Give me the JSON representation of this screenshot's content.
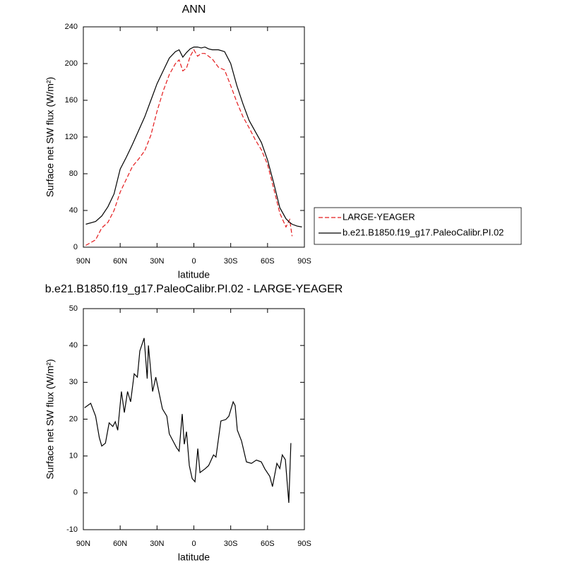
{
  "chart_data": [
    {
      "type": "line",
      "title": "ANN",
      "xlabel": "latitude",
      "ylabel": "Surface net SW flux (W/m²)",
      "x": [
        88,
        80,
        75,
        70,
        65,
        60,
        55,
        50,
        45,
        40,
        35,
        30,
        25,
        20,
        15,
        12,
        9,
        6,
        3,
        0,
        -3,
        -6,
        -9,
        -12,
        -15,
        -20,
        -25,
        -30,
        -35,
        -40,
        -45,
        -50,
        -55,
        -60,
        -65,
        -70,
        -75,
        -78,
        -80,
        -84,
        -88
      ],
      "series": [
        {
          "name": "LARGE-YEAGER",
          "color": "#e41a1c",
          "line_style": "dashed",
          "values": [
            2,
            8,
            21,
            27,
            40,
            60,
            74,
            88,
            96,
            105,
            122,
            148,
            170,
            188,
            200,
            204,
            192,
            195,
            208,
            215,
            208,
            211,
            211,
            208,
            205,
            196,
            193,
            176,
            158,
            142,
            130,
            117,
            106,
            90,
            64,
            37,
            22,
            30,
            12,
            null,
            null
          ]
        },
        {
          "name": "b.e21.B1850.f19_g17.PaleoCalibr.PI.02",
          "color": "#000000",
          "line_style": "solid",
          "values": [
            25,
            28,
            34,
            44,
            58,
            85,
            98,
            112,
            127,
            142,
            160,
            178,
            192,
            206,
            213,
            215,
            207,
            212,
            216,
            218,
            218,
            217,
            218,
            216,
            215,
            215,
            213,
            200,
            176,
            156,
            138,
            126,
            114,
            95,
            70,
            43,
            31,
            27,
            25,
            23,
            22
          ]
        }
      ],
      "xlim": [
        90,
        -90
      ],
      "xticks": [
        {
          "value": 90,
          "label": "90N"
        },
        {
          "value": 60,
          "label": "60N"
        },
        {
          "value": 30,
          "label": "30N"
        },
        0,
        {
          "value": -30,
          "label": "30S"
        },
        {
          "value": -60,
          "label": "60S"
        },
        {
          "value": -90,
          "label": "90S"
        }
      ],
      "ylim": [
        0,
        240
      ],
      "yticks": [
        0,
        40,
        80,
        120,
        160,
        200,
        240
      ],
      "legend": true
    },
    {
      "type": "line",
      "title": "b.e21.B1850.f19_g17.PaleoCalibr.PI.02 - LARGE-YEAGER",
      "xlabel": "latitude",
      "ylabel": "Surface net SW flux (W/m²)",
      "x": [
        89,
        84,
        80,
        77,
        75,
        72,
        69,
        66,
        64,
        62,
        59,
        56.6,
        54,
        51.5,
        48.6,
        46,
        44,
        40.5,
        38,
        37,
        33.6,
        31,
        25.6,
        22,
        20,
        14,
        12,
        9.5,
        7.8,
        6,
        3.7,
        1.4,
        -0.9,
        -3.2,
        -5,
        -9,
        -12,
        -16,
        -18,
        -22,
        -26,
        -28.5,
        -32,
        -33.6,
        -35.4,
        -38.8,
        -42.8,
        -46.9,
        -50.9,
        -54.9,
        -57.8,
        -61.8,
        -64,
        -67.6,
        -70,
        -72,
        -74.5,
        -77.3,
        -79
      ],
      "series": [
        {
          "name": "b.e21.B1850.f19_g17.PaleoCalibr.PI.02 - LARGE-YEAGER",
          "color": "#000000",
          "line_style": "solid",
          "values": [
            23.1,
            24.3,
            20.8,
            15,
            12.7,
            13.5,
            19,
            18,
            19.3,
            17,
            27.5,
            21.8,
            27.5,
            24.7,
            32.3,
            31.4,
            38.5,
            42,
            31,
            40,
            27.5,
            31.4,
            22.8,
            20.8,
            16,
            12.2,
            11.3,
            21.4,
            13.2,
            16.6,
            7.4,
            3.9,
            3,
            12,
            5.5,
            6.5,
            7.4,
            10.3,
            9.7,
            19.5,
            19.9,
            20.8,
            24.7,
            23.7,
            17,
            14.1,
            8.4,
            8,
            8.9,
            8.4,
            6.5,
            4.5,
            1.7,
            8,
            6.6,
            10.3,
            9,
            -2.7,
            13.5
          ]
        }
      ],
      "xlim": [
        90,
        -90
      ],
      "xticks": [
        {
          "value": 90,
          "label": "90N"
        },
        {
          "value": 60,
          "label": "60N"
        },
        {
          "value": 30,
          "label": "30N"
        },
        0,
        {
          "value": -30,
          "label": "30S"
        },
        {
          "value": -60,
          "label": "60S"
        },
        {
          "value": -90,
          "label": "90S"
        }
      ],
      "ylim": [
        -10,
        50
      ],
      "yticks": [
        -10,
        0,
        10,
        20,
        30,
        40,
        50
      ],
      "legend": false
    }
  ]
}
